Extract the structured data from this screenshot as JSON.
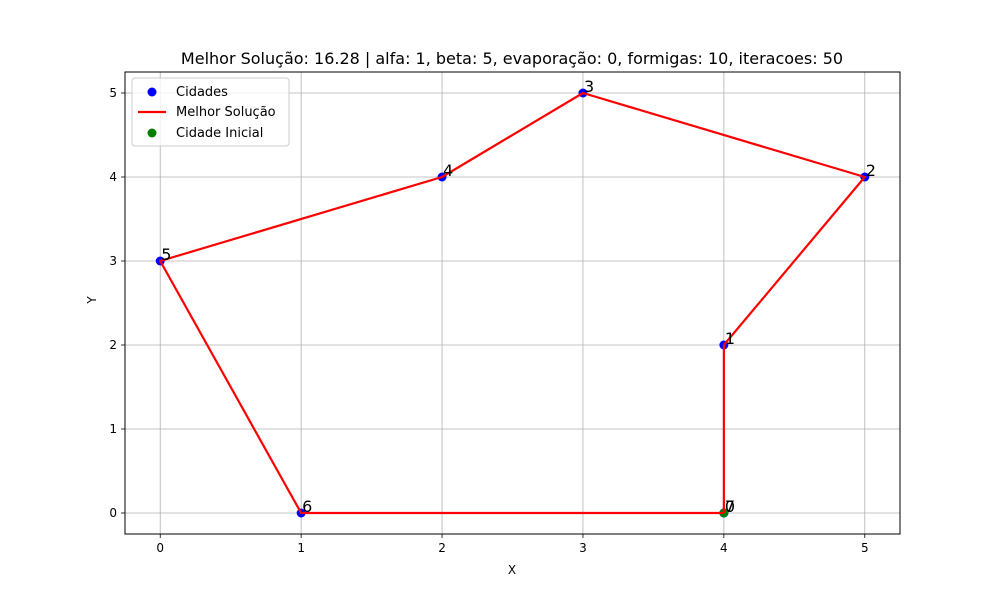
{
  "chart_data": {
    "type": "scatter",
    "title": "Melhor Solução: 16.28 | alfa: 1, beta: 5, evaporação: 0, formigas: 10, iteracoes: 50",
    "xlabel": "X",
    "ylabel": "Y",
    "xlim": [
      -0.25,
      5.25
    ],
    "ylim": [
      -0.25,
      5.25
    ],
    "xticks": [
      0,
      1,
      2,
      3,
      4,
      5
    ],
    "yticks": [
      0,
      1,
      2,
      3,
      4,
      5
    ],
    "grid": true,
    "legend_position": "top-left",
    "series": [
      {
        "name": "Cidades",
        "kind": "scatter",
        "color": "#0000ff",
        "points": [
          {
            "x": 4,
            "y": 0,
            "label": "0"
          },
          {
            "x": 4,
            "y": 2,
            "label": "1"
          },
          {
            "x": 5,
            "y": 4,
            "label": "2"
          },
          {
            "x": 3,
            "y": 5,
            "label": "3"
          },
          {
            "x": 2,
            "y": 4,
            "label": "4"
          },
          {
            "x": 0,
            "y": 3,
            "label": "5"
          },
          {
            "x": 1,
            "y": 0,
            "label": "6"
          },
          {
            "x": 4,
            "y": 0,
            "label": "7"
          }
        ]
      },
      {
        "name": "Melhor Solução",
        "kind": "line",
        "color": "#ff0000",
        "points": [
          {
            "x": 4,
            "y": 0
          },
          {
            "x": 4,
            "y": 2
          },
          {
            "x": 5,
            "y": 4
          },
          {
            "x": 3,
            "y": 5
          },
          {
            "x": 2,
            "y": 4
          },
          {
            "x": 0,
            "y": 3
          },
          {
            "x": 1,
            "y": 0
          },
          {
            "x": 4,
            "y": 0
          }
        ]
      },
      {
        "name": "Cidade Inicial",
        "kind": "scatter",
        "color": "#008000",
        "points": [
          {
            "x": 4,
            "y": 0
          }
        ]
      }
    ]
  }
}
